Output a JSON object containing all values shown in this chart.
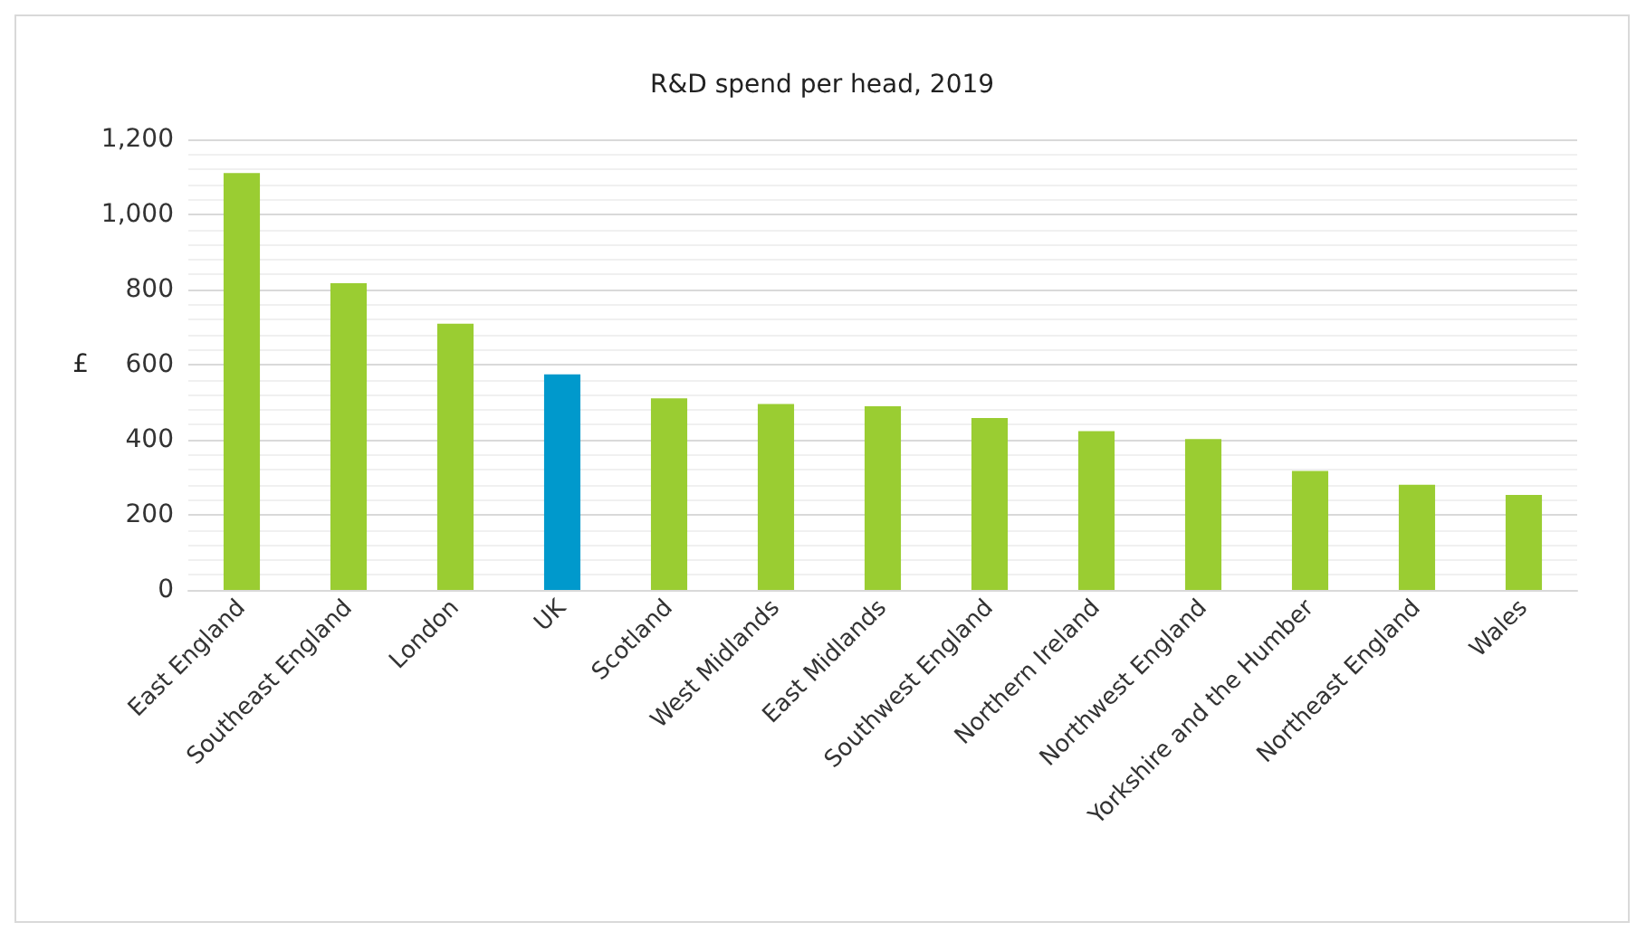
{
  "chart_data": {
    "type": "bar",
    "title": "R&D spend per head, 2019",
    "ylabel": "£",
    "categories": [
      "East England",
      "Southeast England",
      "London",
      "UK",
      "Scotland",
      "West Midlands",
      "East Midlands",
      "Southwest England",
      "Northern Ireland",
      "Northwest England",
      "Yorkshire and the Humber",
      "Northeast England",
      "Wales"
    ],
    "values": [
      1110,
      817,
      709,
      574,
      510,
      495,
      489,
      458,
      423,
      402,
      317,
      280,
      253
    ],
    "colors": [
      "#9acd32",
      "#9acd32",
      "#9acd32",
      "#0099cc",
      "#9acd32",
      "#9acd32",
      "#9acd32",
      "#9acd32",
      "#9acd32",
      "#9acd32",
      "#9acd32",
      "#9acd32",
      "#9acd32"
    ],
    "ylim": [
      0,
      1200
    ],
    "yticks": [
      0,
      200,
      400,
      600,
      800,
      {
        "value": 1000,
        "label": "1,000"
      },
      {
        "value": 1200,
        "label": "1,200"
      }
    ],
    "grid": "y"
  }
}
